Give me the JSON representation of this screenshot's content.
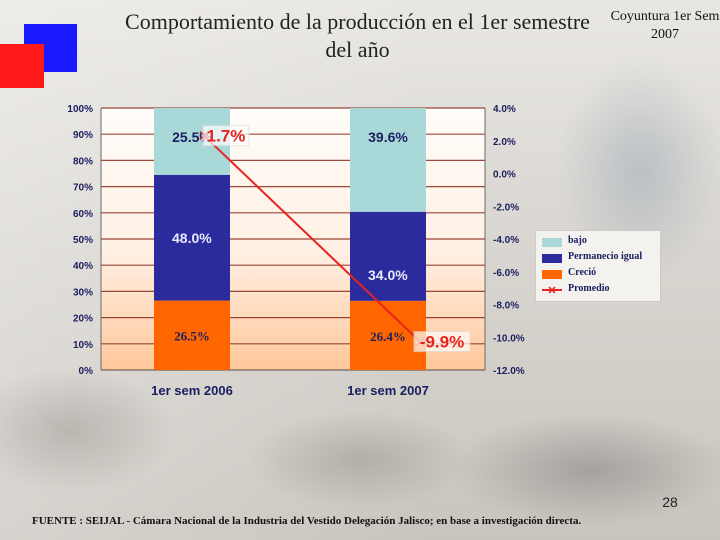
{
  "header": {
    "title": "Comportamiento de la producción en el 1er semestre del año",
    "subtitle": "Coyuntura 1er Sem 2007"
  },
  "chart_data": {
    "type": "bar",
    "stacked": true,
    "categories": [
      "1er sem 2006",
      "1er sem 2007"
    ],
    "series": [
      {
        "name": "Creció",
        "values": [
          26.5,
          26.4
        ],
        "labels": [
          "26.5%",
          "26.4%"
        ],
        "color": "#ff6600"
      },
      {
        "name": "Permanecio igual",
        "values": [
          48.0,
          34.0
        ],
        "labels": [
          "48.0%",
          "34.0%"
        ],
        "color": "#2b2b9e"
      },
      {
        "name": "bajo",
        "values": [
          25.5,
          39.6
        ],
        "labels": [
          "25.5%",
          "39.6%"
        ],
        "color": "#a9d8d8"
      }
    ],
    "line_series": {
      "name": "Promedio",
      "values": [
        1.7,
        -9.9
      ],
      "labels": [
        "1.7%",
        "-9.9%"
      ],
      "color": "#e8231e",
      "axis": "right"
    },
    "ylim": [
      0,
      100
    ],
    "y_ticks": [
      "0%",
      "10%",
      "20%",
      "30%",
      "40%",
      "50%",
      "60%",
      "70%",
      "80%",
      "90%",
      "100%"
    ],
    "y2lim": [
      -12,
      4
    ],
    "y2_ticks": [
      "-12.0%",
      "-10.0%",
      "-8.0%",
      "-6.0%",
      "-4.0%",
      "-2.0%",
      "0.0%",
      "2.0%",
      "4.0%"
    ],
    "grid": true,
    "legend": "right"
  },
  "legend": {
    "items": [
      {
        "label": "bajo",
        "color": "#a9d8d8"
      },
      {
        "label": "Permanecio igual",
        "color": "#2b2b9e"
      },
      {
        "label": "Creció",
        "color": "#ff6600"
      },
      {
        "label": "Promedio",
        "color": "#e8231e"
      }
    ]
  },
  "page_number": "28",
  "footer": {
    "source": "FUENTE : SEIJAL - Cámara Nacional de la Industria del Vestido Delegación Jalisco; en base a investigación directa."
  }
}
